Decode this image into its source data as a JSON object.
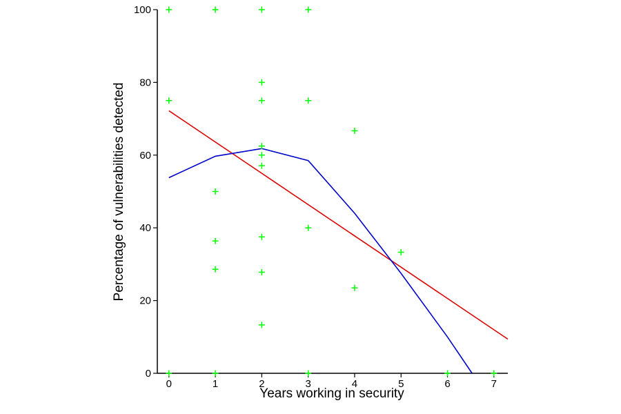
{
  "chart_data": {
    "type": "scatter",
    "title": "",
    "xlabel": "Years working in security",
    "ylabel": "Percentage of vulnerabilities detected",
    "xlim": [
      -0.25,
      7.3
    ],
    "ylim": [
      0,
      100
    ],
    "x_ticks": [
      0,
      1,
      2,
      3,
      4,
      5,
      6,
      7
    ],
    "y_ticks": [
      0,
      20,
      40,
      60,
      80,
      100
    ],
    "grid": false,
    "legend": "none",
    "colors": {
      "points": "#00ff00",
      "linear_fit": "#dd0000",
      "smooth_fit": "#0000cc",
      "axes": "#000000"
    },
    "series": [
      {
        "kind": "points",
        "marker": "plus",
        "points": [
          {
            "x": 0,
            "y": 100
          },
          {
            "x": 0,
            "y": 75
          },
          {
            "x": 0,
            "y": 0
          },
          {
            "x": 1,
            "y": 100
          },
          {
            "x": 1,
            "y": 50
          },
          {
            "x": 1,
            "y": 36.4
          },
          {
            "x": 1,
            "y": 28.6
          },
          {
            "x": 1,
            "y": 0
          },
          {
            "x": 2,
            "y": 100
          },
          {
            "x": 2,
            "y": 80
          },
          {
            "x": 2,
            "y": 75
          },
          {
            "x": 2,
            "y": 62.5
          },
          {
            "x": 2,
            "y": 60
          },
          {
            "x": 2,
            "y": 57.1
          },
          {
            "x": 2,
            "y": 37.5
          },
          {
            "x": 2,
            "y": 27.8
          },
          {
            "x": 2,
            "y": 13.3
          },
          {
            "x": 3,
            "y": 100
          },
          {
            "x": 3,
            "y": 75
          },
          {
            "x": 3,
            "y": 40
          },
          {
            "x": 3,
            "y": 0
          },
          {
            "x": 4,
            "y": 66.7
          },
          {
            "x": 4,
            "y": 23.5
          },
          {
            "x": 5,
            "y": 33.3
          },
          {
            "x": 6,
            "y": 0
          },
          {
            "x": 7,
            "y": 0
          }
        ]
      },
      {
        "kind": "line",
        "fit": "linear",
        "points": [
          {
            "x": 0,
            "y": 72.2
          },
          {
            "x": 7.3,
            "y": 9.4
          }
        ]
      },
      {
        "kind": "line",
        "fit": "smooth",
        "points": [
          {
            "x": 0,
            "y": 53.8
          },
          {
            "x": 1,
            "y": 59.7
          },
          {
            "x": 2,
            "y": 61.8
          },
          {
            "x": 3,
            "y": 58.5
          },
          {
            "x": 4,
            "y": 44
          },
          {
            "x": 5,
            "y": 27.5
          },
          {
            "x": 6,
            "y": 10
          },
          {
            "x": 6.53,
            "y": 0
          }
        ]
      }
    ]
  }
}
